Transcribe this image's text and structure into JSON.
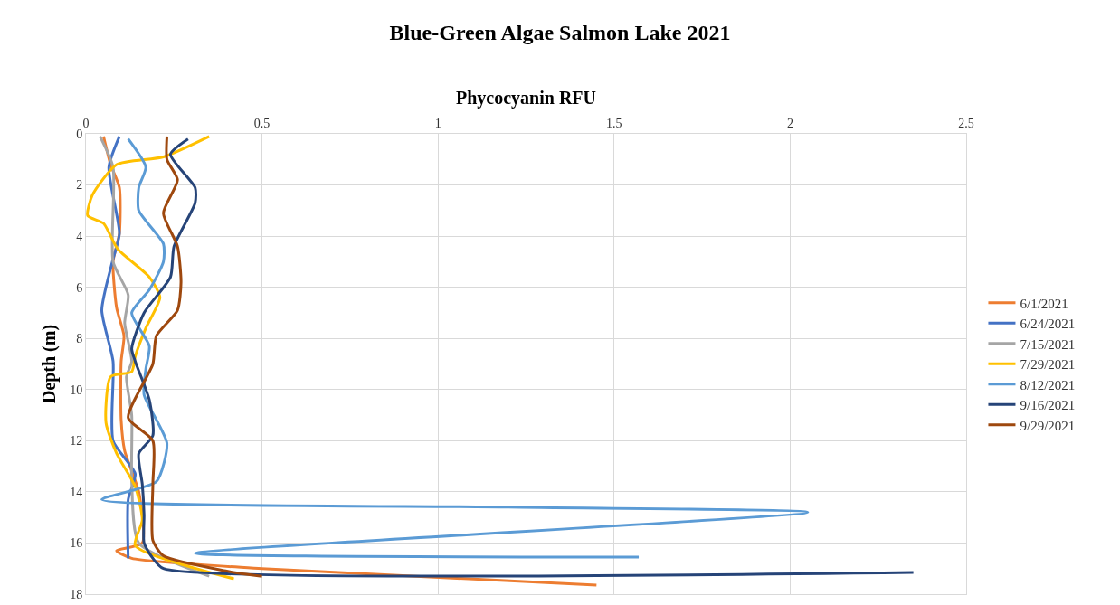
{
  "chart_data": {
    "type": "line",
    "title": "Blue-Green Algae Salmon Lake 2021",
    "xlabel": "Phycocyanin RFU",
    "ylabel": "Depth (m)",
    "xlim": [
      0,
      2.5
    ],
    "xticks": [
      0,
      0.5,
      1,
      1.5,
      2,
      2.5
    ],
    "ylim": [
      18,
      0
    ],
    "yticks": [
      0,
      2,
      4,
      6,
      8,
      10,
      12,
      14,
      16,
      18
    ],
    "grid": true,
    "legend": "right",
    "marker": "none",
    "line_style": "solid",
    "series": [
      {
        "name": "6/1/2021",
        "color": "#ed7d31",
        "x": [
          0.05,
          0.07,
          0.095,
          0.095,
          0.077,
          0.087,
          0.108,
          0.1,
          0.1,
          0.11,
          0.15,
          0.16,
          0.087,
          0.13,
          0.5,
          1.45
        ],
        "values": [
          0.1,
          1.2,
          2.1,
          3.9,
          5.0,
          6.8,
          7.9,
          8.9,
          11.2,
          12.4,
          14.0,
          16.0,
          16.3,
          16.6,
          17.0,
          17.65
        ]
      },
      {
        "name": "6/24/2021",
        "color": "#4472c4",
        "x": [
          0.095,
          0.065,
          0.095,
          0.075,
          0.045,
          0.077,
          0.077,
          0.14,
          0.12,
          0.12
        ],
        "values": [
          0.1,
          1.3,
          3.9,
          5.0,
          6.9,
          8.9,
          12.0,
          13.3,
          14.3,
          16.6
        ]
      },
      {
        "name": "7/15/2021",
        "color": "#a5a5a5",
        "x": [
          0.04,
          0.077,
          0.077,
          0.12,
          0.11,
          0.13,
          0.115,
          0.13,
          0.13,
          0.15,
          0.35
        ],
        "values": [
          0.1,
          1.3,
          5.0,
          6.3,
          7.4,
          8.9,
          9.5,
          11.0,
          13.6,
          16.0,
          17.3
        ]
      },
      {
        "name": "7/29/2021",
        "color": "#ffc000",
        "x": [
          0.35,
          0.22,
          0.087,
          0.018,
          0.005,
          0.05,
          0.09,
          0.18,
          0.21,
          0.17,
          0.14,
          0.13,
          0.07,
          0.057,
          0.087,
          0.14,
          0.16,
          0.14,
          0.42
        ],
        "values": [
          0.1,
          0.9,
          1.2,
          2.4,
          3.2,
          3.5,
          4.5,
          5.6,
          6.4,
          7.6,
          8.7,
          9.3,
          9.5,
          11.3,
          12.5,
          13.8,
          15.1,
          16.1,
          17.4
        ]
      },
      {
        "name": "8/12/2021",
        "color": "#5b9bd5",
        "x": [
          0.12,
          0.17,
          0.15,
          0.15,
          0.22,
          0.22,
          0.18,
          0.13,
          0.18,
          0.17,
          0.165,
          0.23,
          0.2,
          0.045,
          1.2,
          2.05,
          0.31,
          1.57
        ],
        "values": [
          0.2,
          1.3,
          2.1,
          3.0,
          4.3,
          5.0,
          6.1,
          7.0,
          8.3,
          9.2,
          10.2,
          12.1,
          13.6,
          14.3,
          14.6,
          14.8,
          16.4,
          16.55
        ]
      },
      {
        "name": "9/16/2021",
        "color": "#264478",
        "x": [
          0.29,
          0.24,
          0.31,
          0.31,
          0.25,
          0.24,
          0.165,
          0.13,
          0.14,
          0.18,
          0.19,
          0.15,
          0.16,
          0.165,
          0.165,
          0.19,
          0.22,
          2.35
        ],
        "values": [
          0.2,
          0.8,
          2.1,
          2.7,
          4.4,
          5.6,
          7.0,
          8.4,
          8.9,
          10.4,
          11.8,
          12.5,
          13.7,
          14.9,
          16.0,
          16.6,
          17.0,
          17.15
        ]
      },
      {
        "name": "9/29/2021",
        "color": "#9e480e",
        "x": [
          0.23,
          0.23,
          0.26,
          0.22,
          0.26,
          0.27,
          0.26,
          0.2,
          0.19,
          0.12,
          0.19,
          0.19,
          0.19,
          0.22,
          0.4,
          0.5
        ],
        "values": [
          0.1,
          1.0,
          1.8,
          3.1,
          4.4,
          5.8,
          6.9,
          7.9,
          9.0,
          11.1,
          12.0,
          13.7,
          15.9,
          16.5,
          17.1,
          17.3
        ]
      }
    ]
  }
}
